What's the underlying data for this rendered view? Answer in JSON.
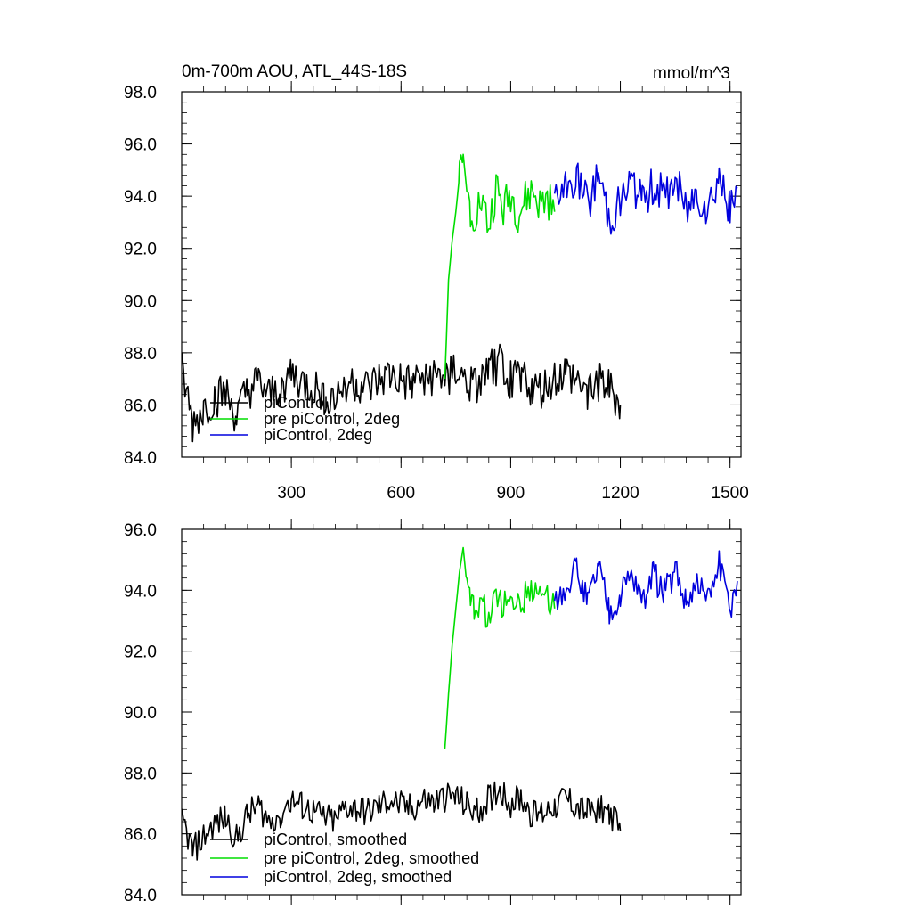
{
  "chart_data": [
    {
      "type": "line",
      "title": "0m-700m AOU, ATL_44S-18S",
      "units": "mmol/m^3",
      "xlim": [
        0,
        1530
      ],
      "ylim": [
        84,
        98
      ],
      "xticks": [
        300,
        600,
        900,
        1200,
        1500
      ],
      "xtick_labels": [
        "300",
        "600",
        "900",
        "1200",
        "1500"
      ],
      "yticks": [
        84,
        86,
        88,
        90,
        92,
        94,
        96,
        98
      ],
      "ytick_labels": [
        "84.0",
        "86.0",
        "88.0",
        "90.0",
        "92.0",
        "94.0",
        "96.0",
        "98.0"
      ],
      "legend_position": "bottom-left",
      "series": [
        {
          "name": "piControl",
          "color": "#000000",
          "x": [
            1,
            30,
            60,
            90,
            120,
            150,
            180,
            210,
            240,
            270,
            300,
            330,
            360,
            390,
            420,
            450,
            480,
            510,
            540,
            570,
            600,
            630,
            660,
            690,
            720,
            750,
            780,
            810,
            840,
            870,
            900,
            930,
            960,
            990,
            1020,
            1050,
            1080,
            1110,
            1140,
            1170,
            1200
          ],
          "y": [
            87.3,
            85.2,
            85.8,
            86.2,
            86.4,
            85.5,
            86.5,
            86.8,
            86.3,
            86.6,
            87.2,
            86.8,
            86.6,
            86.4,
            86.2,
            86.9,
            86.8,
            86.6,
            86.9,
            87.1,
            86.9,
            86.7,
            87.2,
            87.0,
            87.1,
            87.3,
            86.8,
            86.6,
            87.3,
            87.6,
            87.0,
            87.3,
            86.5,
            86.6,
            87.0,
            87.2,
            86.9,
            86.6,
            86.9,
            86.6,
            86.0
          ]
        },
        {
          "name": "pre piControl, 2deg",
          "color": "#00dd00",
          "x": [
            720,
            730,
            740,
            750,
            760,
            770,
            780,
            790,
            800,
            820,
            840,
            860,
            880,
            900,
            920,
            940,
            960,
            980,
            1000,
            1020
          ],
          "y": [
            87.0,
            90.8,
            92.3,
            93.4,
            94.8,
            95.6,
            94.2,
            93.5,
            93.4,
            93.9,
            92.8,
            94.3,
            93.4,
            94.1,
            93.3,
            93.8,
            94.2,
            93.6,
            93.9,
            93.4
          ]
        },
        {
          "name": "piControl, 2deg",
          "color": "#0000dd",
          "x": [
            1020,
            1050,
            1080,
            1110,
            1140,
            1170,
            1200,
            1230,
            1260,
            1290,
            1320,
            1350,
            1380,
            1410,
            1440,
            1470,
            1500,
            1520
          ],
          "y": [
            93.8,
            94.2,
            94.8,
            93.6,
            94.9,
            93.2,
            93.8,
            94.6,
            93.7,
            94.5,
            93.9,
            94.7,
            93.5,
            94.2,
            93.6,
            94.9,
            93.3,
            94.3
          ]
        }
      ]
    },
    {
      "type": "line",
      "title": "",
      "xlim": [
        0,
        1530
      ],
      "ylim": [
        84,
        96
      ],
      "xticks": [
        300,
        600,
        900,
        1200,
        1500
      ],
      "yticks": [
        84,
        86,
        88,
        90,
        92,
        94,
        96
      ],
      "ytick_labels": [
        "84.0",
        "86.0",
        "88.0",
        "90.0",
        "92.0",
        "94.0",
        "96.0"
      ],
      "legend_position": "bottom-left",
      "series": [
        {
          "name": "piControl, smoothed",
          "color": "#000000",
          "x": [
            1,
            30,
            60,
            90,
            120,
            150,
            180,
            210,
            240,
            270,
            300,
            330,
            360,
            390,
            420,
            450,
            480,
            510,
            540,
            570,
            600,
            630,
            660,
            690,
            720,
            750,
            780,
            810,
            840,
            870,
            900,
            930,
            960,
            990,
            1020,
            1050,
            1080,
            1110,
            1140,
            1170,
            1200
          ],
          "y": [
            86.5,
            85.4,
            85.9,
            86.3,
            86.5,
            85.8,
            86.6,
            86.9,
            86.4,
            86.7,
            87.1,
            86.9,
            86.7,
            86.5,
            86.4,
            86.9,
            86.8,
            86.7,
            86.9,
            87.1,
            86.9,
            86.8,
            87.1,
            87.0,
            87.2,
            87.2,
            86.9,
            86.7,
            87.2,
            87.5,
            87.0,
            87.2,
            86.6,
            86.7,
            87.0,
            87.2,
            86.9,
            86.7,
            86.9,
            86.7,
            86.1
          ]
        },
        {
          "name": "pre piControl, 2deg, smoothed",
          "color": "#00dd00",
          "x": [
            720,
            730,
            740,
            750,
            760,
            770,
            780,
            790,
            800,
            820,
            840,
            860,
            880,
            900,
            920,
            940,
            960,
            980,
            1000,
            1020
          ],
          "y": [
            88.8,
            90.6,
            92.2,
            93.4,
            94.6,
            95.4,
            94.2,
            93.5,
            93.4,
            93.7,
            92.9,
            94.1,
            93.4,
            94.0,
            93.4,
            93.8,
            94.1,
            93.7,
            93.9,
            93.4
          ]
        },
        {
          "name": "piControl, 2deg, smoothed",
          "color": "#0000dd",
          "x": [
            1020,
            1050,
            1080,
            1110,
            1140,
            1170,
            1200,
            1230,
            1260,
            1290,
            1320,
            1350,
            1380,
            1410,
            1440,
            1470,
            1500,
            1520
          ],
          "y": [
            93.6,
            94.2,
            94.7,
            93.6,
            94.8,
            93.3,
            93.8,
            94.5,
            93.7,
            94.5,
            93.9,
            94.6,
            93.6,
            94.2,
            93.6,
            94.8,
            93.3,
            94.3
          ]
        }
      ]
    }
  ]
}
